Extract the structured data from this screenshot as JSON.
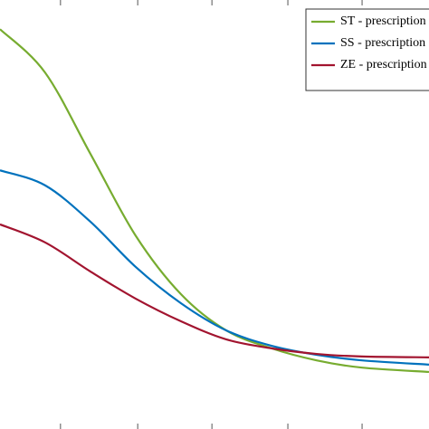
{
  "chart_data": {
    "type": "line",
    "x": [
      0,
      0.105,
      0.211,
      0.316,
      0.422,
      0.527,
      0.633,
      0.738,
      0.844,
      1.0
    ],
    "series": [
      {
        "name": "ST - prescription",
        "color": "#77ac30",
        "values": [
          0.932,
          0.831,
          0.641,
          0.451,
          0.314,
          0.23,
          0.188,
          0.16,
          0.143,
          0.133
        ]
      },
      {
        "name": "SS - prescription",
        "color": "#0072bd",
        "values": [
          0.603,
          0.568,
          0.483,
          0.378,
          0.293,
          0.23,
          0.194,
          0.173,
          0.16,
          0.15
        ]
      },
      {
        "name": "ZE - prescription",
        "color": "#a2142f",
        "values": [
          0.477,
          0.435,
          0.367,
          0.304,
          0.251,
          0.209,
          0.188,
          0.175,
          0.169,
          0.167
        ]
      }
    ],
    "xlim": [
      0,
      1
    ],
    "ylim": [
      0,
      1
    ],
    "xticks": [
      0.141,
      0.321,
      0.494,
      0.671,
      0.844
    ],
    "legend": "upper right"
  }
}
